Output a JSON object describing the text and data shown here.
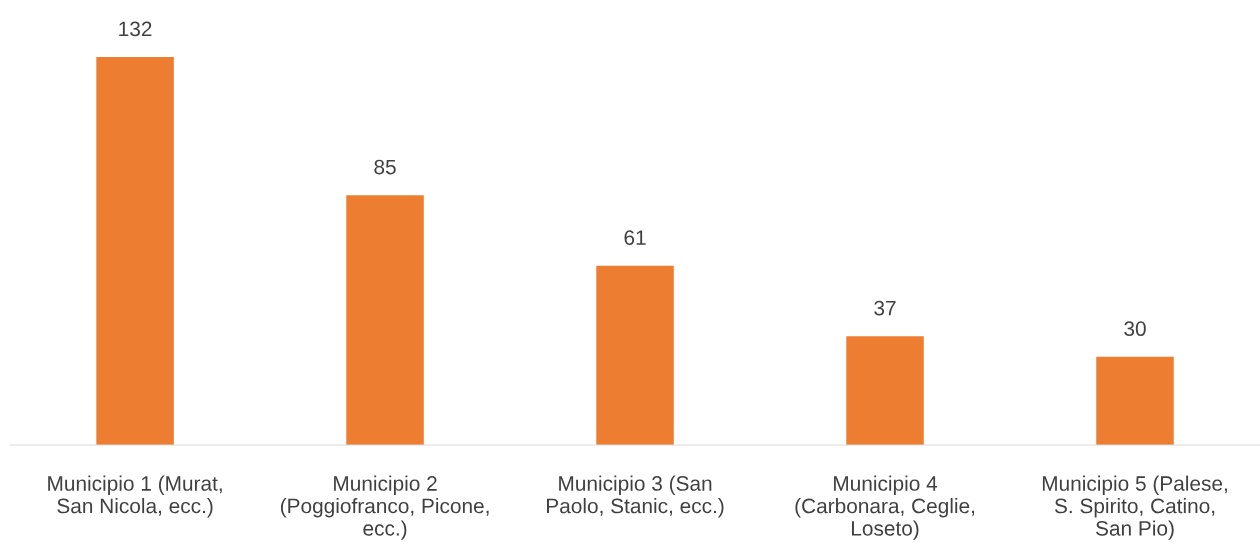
{
  "chart_data": {
    "type": "bar",
    "categories": [
      "Municipio 1 (Murat, San Nicola, ecc.)",
      "Municipio 2 (Poggiofranco, Picone, ecc.)",
      "Municipio 3 (San Paolo, Stanic, ecc.)",
      "Municipio 4 (Carbonara, Ceglie, Loseto)",
      "Municipio 5 (Palese, S. Spirito, Catino, San Pio)"
    ],
    "values": [
      132,
      85,
      61,
      37,
      30
    ],
    "color": "#ed7d31",
    "data_labels": true,
    "grid": false,
    "legend": false
  }
}
